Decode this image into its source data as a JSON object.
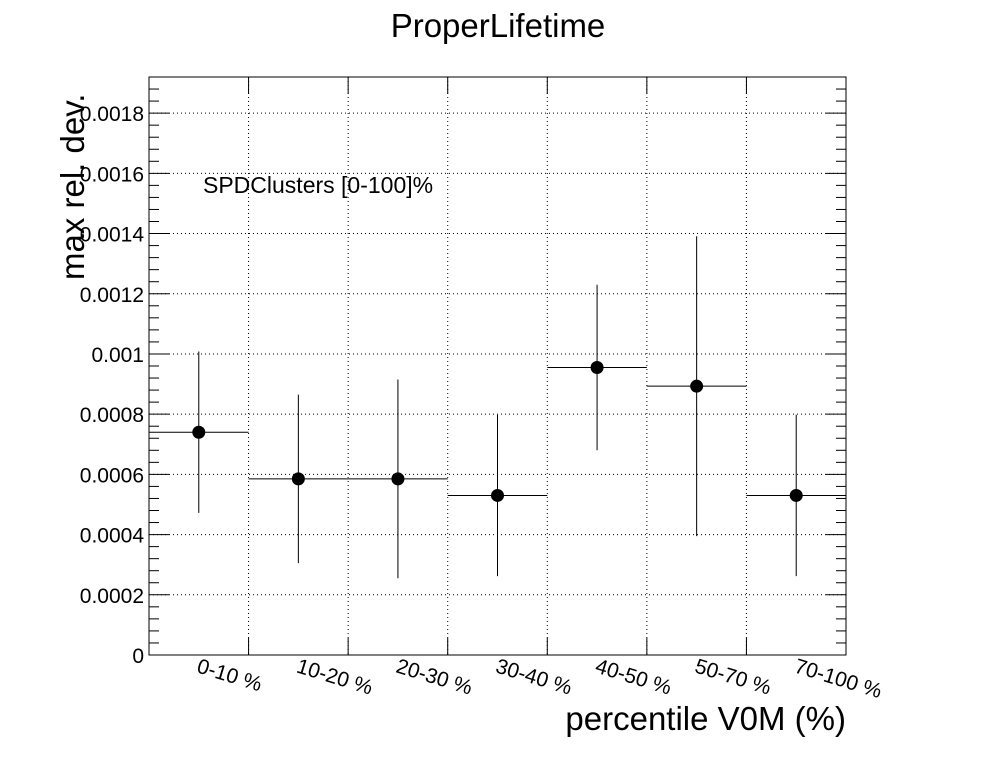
{
  "chart_data": {
    "type": "scatter",
    "title": "ProperLifetime",
    "xlabel": "percentile V0M (%)",
    "ylabel": "max rel. dev.",
    "annotation": "SPDClusters [0-100]%",
    "categories": [
      "0-10 %",
      "10-20 %",
      "20-30 %",
      "30-40 %",
      "40-50 %",
      "50-70 %",
      "70-100 %"
    ],
    "series": [
      {
        "values": [
          0.00074,
          0.000585,
          0.000585,
          0.00053,
          0.000955,
          0.000893,
          0.00053
        ],
        "errors": [
          0.000268,
          0.00028,
          0.00033,
          0.000268,
          0.000275,
          0.000498,
          0.000268
        ]
      }
    ],
    "ylim": [
      0,
      0.00192
    ],
    "yticks": [
      0,
      0.0002,
      0.0004,
      0.0006,
      0.0008,
      0.001,
      0.0012,
      0.0014,
      0.0016,
      0.0018
    ],
    "ytick_labels": [
      "0",
      "0.0002",
      "0.0004",
      "0.0006",
      "0.0008",
      "0.001",
      "0.0012",
      "0.0014",
      "0.0016",
      "0.0018"
    ],
    "grid": true,
    "legend": "none",
    "colors": {
      "marker": "#000000",
      "axis": "#000000",
      "grid": "#000000"
    }
  }
}
